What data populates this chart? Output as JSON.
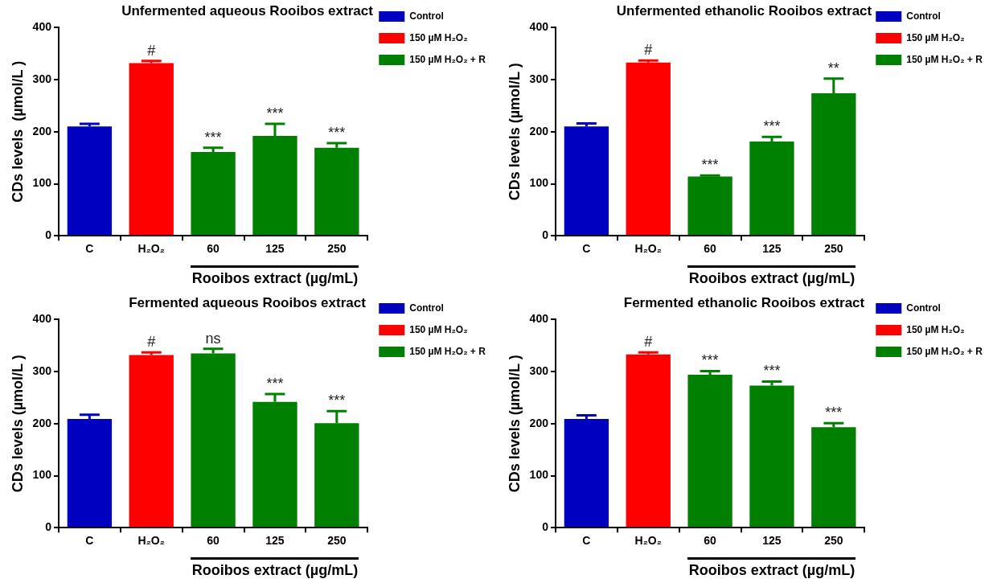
{
  "chart_data": [
    {
      "type": "bar",
      "title": "Unfermented aqueous Rooibos extract",
      "xlabel": "Rooibos extract (µg/mL)",
      "ylabel": "CDs levels  (µmol/L )",
      "categories": [
        "C",
        "H₂O₂",
        "60",
        "125",
        "250"
      ],
      "series": [
        {
          "name": "Control",
          "color": "#0000c0",
          "values": [
            210,
            null,
            null,
            null,
            null
          ],
          "errors": [
            [
              210,
              215
            ],
            null,
            null,
            null,
            null
          ]
        },
        {
          "name": "150 µM H₂O₂",
          "color": "#ff0000",
          "values": [
            null,
            332,
            null,
            null,
            null
          ],
          "errors": [
            null,
            [
              332,
              336
            ],
            null,
            null,
            null
          ]
        },
        {
          "name": "150 µM H₂O₂ + R",
          "color": "#008000",
          "values": [
            null,
            null,
            161,
            192,
            169
          ],
          "errors": [
            null,
            null,
            [
              161,
              169
            ],
            [
              192,
              215
            ],
            [
              169,
              178
            ]
          ]
        }
      ],
      "ylim": [
        0,
        400
      ],
      "yticks": [
        0,
        100,
        200,
        300,
        400
      ],
      "grid": false,
      "legend": "top right",
      "annotations": [
        {
          "text": "#",
          "x": "H₂O₂",
          "y": 336
        },
        {
          "text": "***",
          "x": "60",
          "y": 169
        },
        {
          "text": "***",
          "x": "125",
          "y": 215
        },
        {
          "text": "***",
          "x": "250",
          "y": 178
        }
      ]
    },
    {
      "type": "bar",
      "title": "Unfermented ethanolic Rooibos extract",
      "xlabel": "Rooibos extract (µg/mL)",
      "ylabel": "CDs levels (µmol/L )",
      "categories": [
        "C",
        "H₂O₂",
        "60",
        "125",
        "250"
      ],
      "series": [
        {
          "name": "Control",
          "color": "#0000c0",
          "values": [
            210,
            null,
            null,
            null,
            null
          ],
          "errors": [
            [
              210,
              216
            ],
            null,
            null,
            null,
            null
          ]
        },
        {
          "name": "150 µM H₂O₂",
          "color": "#ff0000",
          "values": [
            null,
            333,
            null,
            null,
            null
          ],
          "errors": [
            null,
            [
              333,
              337
            ],
            null,
            null,
            null
          ]
        },
        {
          "name": "150 µM H₂O₂ + R",
          "color": "#008000",
          "values": [
            null,
            null,
            114,
            181,
            274
          ],
          "errors": [
            null,
            null,
            [
              114,
              116
            ],
            [
              181,
              190
            ],
            [
              274,
              302
            ]
          ]
        }
      ],
      "ylim": [
        0,
        400
      ],
      "yticks": [
        0,
        100,
        200,
        300,
        400
      ],
      "grid": false,
      "legend": "top right",
      "annotations": [
        {
          "text": "#",
          "x": "H₂O₂",
          "y": 337
        },
        {
          "text": "***",
          "x": "60",
          "y": 116
        },
        {
          "text": "***",
          "x": "125",
          "y": 190
        },
        {
          "text": "**",
          "x": "250",
          "y": 302
        }
      ]
    },
    {
      "type": "bar",
      "title": "Fermented aqueous Rooibos extract",
      "xlabel": "Rooibos extract (µg/mL)",
      "ylabel": "CDs levels (µmol/L )",
      "categories": [
        "C",
        "H₂O₂",
        "60",
        "125",
        "250"
      ],
      "series": [
        {
          "name": "Control",
          "color": "#0000c0",
          "values": [
            209,
            null,
            null,
            null,
            null
          ],
          "errors": [
            [
              209,
              217
            ],
            null,
            null,
            null,
            null
          ]
        },
        {
          "name": "150 µM H₂O₂",
          "color": "#ff0000",
          "values": [
            null,
            332,
            null,
            null,
            null
          ],
          "errors": [
            null,
            [
              332,
              337
            ],
            null,
            null,
            null
          ]
        },
        {
          "name": "150 µM H₂O₂ + R",
          "color": "#008000",
          "values": [
            null,
            null,
            335,
            242,
            201
          ],
          "errors": [
            null,
            null,
            [
              335,
              344
            ],
            [
              242,
              257
            ],
            [
              201,
              224
            ]
          ]
        }
      ],
      "ylim": [
        0,
        400
      ],
      "yticks": [
        0,
        100,
        200,
        300,
        400
      ],
      "grid": false,
      "legend": "top right",
      "annotations": [
        {
          "text": "#",
          "x": "H₂O₂",
          "y": 337
        },
        {
          "text": "ns",
          "x": "60",
          "y": 344
        },
        {
          "text": "***",
          "x": "125",
          "y": 257
        },
        {
          "text": "***",
          "x": "250",
          "y": 224
        }
      ]
    },
    {
      "type": "bar",
      "title": "Fermented ethanolic Rooibos extract",
      "xlabel": "Rooibos extract (µg/mL)",
      "ylabel": "CDs levels (µmol/L )",
      "categories": [
        "C",
        "H₂O₂",
        "60",
        "125",
        "250"
      ],
      "series": [
        {
          "name": "Control",
          "color": "#0000c0",
          "values": [
            209,
            null,
            null,
            null,
            null
          ],
          "errors": [
            [
              209,
              216
            ],
            null,
            null,
            null,
            null
          ]
        },
        {
          "name": "150 µM H₂O₂",
          "color": "#ff0000",
          "values": [
            null,
            333,
            null,
            null,
            null
          ],
          "errors": [
            null,
            [
              333,
              337
            ],
            null,
            null,
            null
          ]
        },
        {
          "name": "150 µM H₂O₂ + R",
          "color": "#008000",
          "values": [
            null,
            null,
            294,
            273,
            193
          ],
          "errors": [
            null,
            null,
            [
              294,
              301
            ],
            [
              273,
              281
            ],
            [
              193,
              201
            ]
          ]
        }
      ],
      "ylim": [
        0,
        400
      ],
      "yticks": [
        0,
        100,
        200,
        300,
        400
      ],
      "grid": false,
      "legend": "top right",
      "annotations": [
        {
          "text": "#",
          "x": "H₂O₂",
          "y": 337
        },
        {
          "text": "***",
          "x": "60",
          "y": 301
        },
        {
          "text": "***",
          "x": "125",
          "y": 281
        },
        {
          "text": "***",
          "x": "250",
          "y": 201
        }
      ]
    }
  ]
}
